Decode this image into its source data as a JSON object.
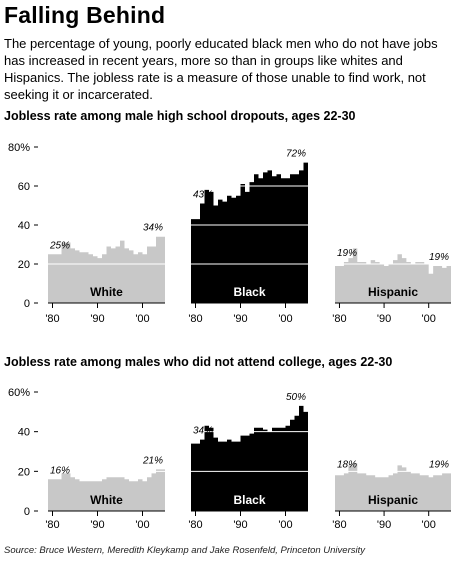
{
  "header": {
    "title": "Falling Behind",
    "subtitle": "The percentage of young, poorly educated black men who do not have jobs has increased in recent years, more so than in groups like whites and Hispanics. The jobless rate is a measure of those unable to find work, not seeking it or incarcerated."
  },
  "footer": {
    "source": "Source: Bruce Western, Meredith Kleykamp and Jake Rosenfeld, Princeton University"
  },
  "colors": {
    "white_group": "#c8c8c8",
    "black_group": "#000000",
    "hispanic_group": "#c8c8c8",
    "gridline": "#ffffff"
  },
  "chart_data": [
    {
      "type": "area",
      "title": "Jobless rate among male high school dropouts, ages 22-30",
      "ylim": [
        0,
        80
      ],
      "yticks": [
        0,
        20,
        40,
        60,
        80
      ],
      "ytick_labels": [
        "0",
        "20",
        "40",
        "60",
        "80%"
      ],
      "xtick_labels": [
        "'80",
        "'90",
        "'00"
      ],
      "xtick_years": [
        1980,
        1990,
        2000
      ],
      "x": [
        1979,
        1980,
        1981,
        1982,
        1983,
        1984,
        1985,
        1986,
        1987,
        1988,
        1989,
        1990,
        1991,
        1992,
        1993,
        1994,
        1995,
        1996,
        1997,
        1998,
        1999,
        2000,
        2001,
        2002,
        2003,
        2004
      ],
      "series": [
        {
          "name": "White",
          "values": [
            25,
            25,
            25,
            31,
            31,
            28,
            27,
            26,
            26,
            25,
            24,
            23,
            25,
            29,
            28,
            29,
            32,
            28,
            27,
            25,
            26,
            25,
            29,
            29,
            34,
            34
          ],
          "annotations": [
            {
              "x": 1980,
              "label": "25%"
            },
            {
              "x": 2003,
              "label": "34%"
            }
          ]
        },
        {
          "name": "Black",
          "values": [
            43,
            43,
            51,
            58,
            57,
            50,
            53,
            52,
            55,
            54,
            55,
            61,
            57,
            62,
            66,
            64,
            67,
            68,
            65,
            66,
            64,
            64,
            66,
            66,
            68,
            72
          ],
          "annotations": [
            {
              "x": 1980,
              "label": "43%"
            },
            {
              "x": 2003,
              "label": "72%"
            }
          ]
        },
        {
          "name": "Hispanic",
          "values": [
            19,
            19,
            21,
            23,
            28,
            21,
            21,
            20,
            22,
            21,
            20,
            19,
            20,
            22,
            25,
            23,
            21,
            20,
            21,
            21,
            20,
            15,
            19,
            19,
            18,
            19
          ],
          "annotations": [
            {
              "x": 1980,
              "label": "19%"
            },
            {
              "x": 2003,
              "label": "19%"
            }
          ]
        }
      ]
    },
    {
      "type": "area",
      "title": "Jobless rate among males who did not attend college, ages 22-30",
      "ylim": [
        0,
        60
      ],
      "yticks": [
        0,
        20,
        40,
        60
      ],
      "ytick_labels": [
        "0",
        "20",
        "40",
        "60%"
      ],
      "xtick_labels": [
        "'80",
        "'90",
        "'00"
      ],
      "xtick_years": [
        1980,
        1990,
        2000
      ],
      "x": [
        1979,
        1980,
        1981,
        1982,
        1983,
        1984,
        1985,
        1986,
        1987,
        1988,
        1989,
        1990,
        1991,
        1992,
        1993,
        1994,
        1995,
        1996,
        1997,
        1998,
        1999,
        2000,
        2001,
        2002,
        2003,
        2004
      ],
      "series": [
        {
          "name": "White",
          "values": [
            16,
            16,
            16,
            19,
            19,
            17,
            16,
            15,
            15,
            15,
            15,
            15,
            16,
            17,
            17,
            17,
            17,
            16,
            15,
            15,
            16,
            15,
            17,
            19,
            21,
            21
          ],
          "annotations": [
            {
              "x": 1980,
              "label": "16%"
            },
            {
              "x": 2003,
              "label": "21%"
            }
          ]
        },
        {
          "name": "Black",
          "values": [
            34,
            34,
            36,
            43,
            42,
            37,
            35,
            35,
            36,
            35,
            35,
            38,
            38,
            39,
            42,
            42,
            41,
            40,
            42,
            42,
            42,
            43,
            46,
            48,
            53,
            50
          ],
          "annotations": [
            {
              "x": 1980,
              "label": "34%"
            },
            {
              "x": 2003,
              "label": "50%"
            }
          ]
        },
        {
          "name": "Hispanic",
          "values": [
            18,
            18,
            19,
            23,
            24,
            19,
            19,
            18,
            18,
            17,
            17,
            17,
            18,
            19,
            23,
            22,
            20,
            19,
            19,
            18,
            18,
            17,
            18,
            18,
            19,
            19
          ],
          "annotations": [
            {
              "x": 1980,
              "label": "18%"
            },
            {
              "x": 2003,
              "label": "19%"
            }
          ]
        }
      ]
    }
  ]
}
